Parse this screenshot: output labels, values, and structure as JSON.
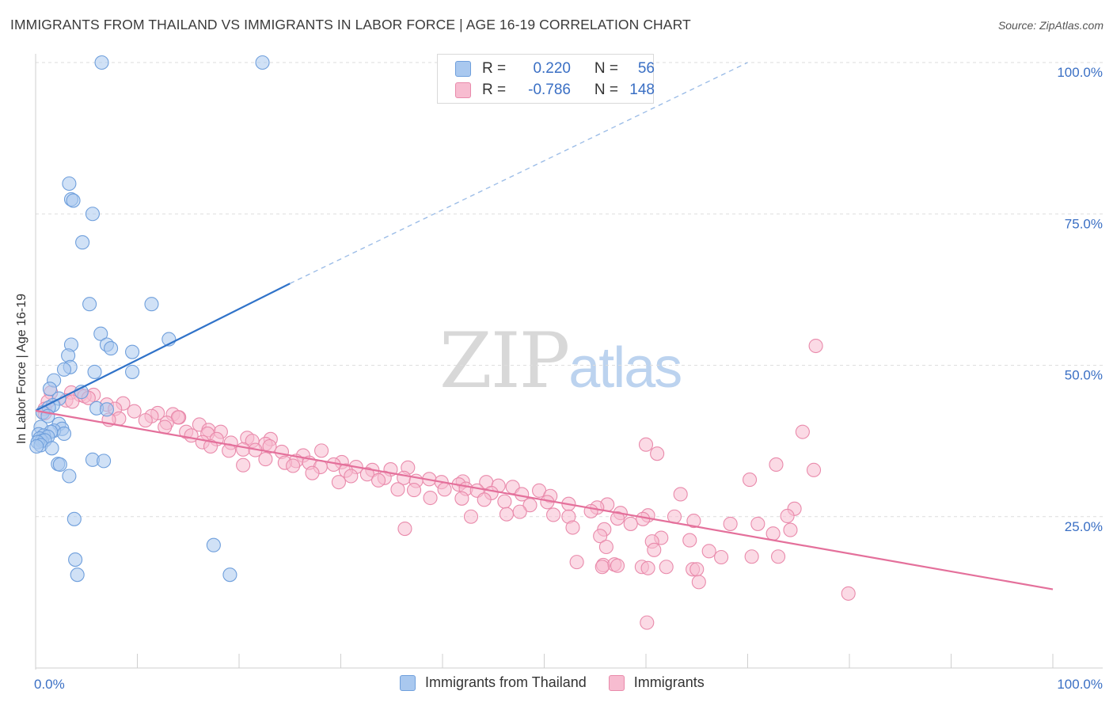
{
  "header": {
    "title": "IMMIGRANTS FROM THAILAND VS IMMIGRANTS IN LABOR FORCE | AGE 16-19 CORRELATION CHART",
    "source": "Source: ZipAtlas.com"
  },
  "watermark": {
    "zip": "ZIP",
    "atlas": "atlas"
  },
  "legend_top": {
    "rows": [
      {
        "r_label": "R =",
        "r_value": "0.220",
        "n_label": "N =",
        "n_value": "56",
        "color": "#a9c8ef",
        "border": "#6f9fdc"
      },
      {
        "r_label": "R =",
        "r_value": "-0.786",
        "n_label": "N =",
        "n_value": "148",
        "color": "#f7bcd0",
        "border": "#e98aab"
      }
    ]
  },
  "legend_bottom": {
    "items": [
      {
        "label": "Immigrants from Thailand",
        "color": "#a9c8ef",
        "border": "#6f9fdc"
      },
      {
        "label": "Immigrants",
        "color": "#f7bcd0",
        "border": "#e98aab"
      }
    ]
  },
  "chart_data": {
    "type": "scatter",
    "title": "IMMIGRANTS FROM THAILAND VS IMMIGRANTS IN LABOR FORCE | AGE 16-19 CORRELATION CHART",
    "xlabel": "",
    "ylabel": "In Labor Force | Age 16-19",
    "xlim": [
      0,
      100
    ],
    "ylim": [
      0,
      100
    ],
    "x_tick_labels": [
      "0.0%",
      "100.0%"
    ],
    "y_tick_labels": [
      "25.0%",
      "50.0%",
      "75.0%",
      "100.0%"
    ],
    "y_ticks": [
      25,
      50,
      75,
      100
    ],
    "grid": true,
    "legend_position": "top-center",
    "colors": {
      "blue_fill": "#a9c8ef",
      "blue_stroke": "#6f9fdc",
      "blue_line": "#3073c9",
      "pink_fill": "#f7bcd0",
      "pink_stroke": "#e98aab",
      "pink_line": "#e4709b",
      "tick_label": "#3a6fc4"
    },
    "series": [
      {
        "name": "Immigrants from Thailand",
        "r": 0.22,
        "n": 56,
        "trend": {
          "x": [
            0,
            25
          ],
          "y": [
            42.5,
            63.5
          ],
          "extend_x": [
            25,
            70
          ],
          "extend_y": [
            63.5,
            100.0
          ]
        },
        "points": [
          [
            6.5,
            100
          ],
          [
            22.3,
            100
          ],
          [
            3.3,
            80
          ],
          [
            3.5,
            77.4
          ],
          [
            3.7,
            77.2
          ],
          [
            5.6,
            75
          ],
          [
            4.6,
            70.3
          ],
          [
            5.3,
            60.1
          ],
          [
            11.4,
            60.1
          ],
          [
            6.4,
            55.2
          ],
          [
            7.0,
            53.4
          ],
          [
            7.4,
            52.8
          ],
          [
            9.5,
            52.2
          ],
          [
            13.1,
            54.3
          ],
          [
            3.5,
            53.4
          ],
          [
            3.2,
            51.6
          ],
          [
            3.4,
            49.7
          ],
          [
            2.8,
            49.3
          ],
          [
            5.8,
            48.9
          ],
          [
            9.5,
            48.9
          ],
          [
            1.8,
            47.5
          ],
          [
            1.4,
            46.1
          ],
          [
            4.5,
            45.6
          ],
          [
            2.3,
            44.5
          ],
          [
            1.7,
            43.4
          ],
          [
            1.3,
            43.0
          ],
          [
            6.0,
            42.9
          ],
          [
            7.0,
            42.7
          ],
          [
            0.7,
            42.2
          ],
          [
            1.2,
            41.6
          ],
          [
            2.3,
            40.3
          ],
          [
            0.5,
            39.8
          ],
          [
            2.6,
            39.5
          ],
          [
            1.8,
            39.2
          ],
          [
            1.5,
            39.0
          ],
          [
            0.3,
            38.6
          ],
          [
            0.8,
            38.4
          ],
          [
            1.2,
            38.2
          ],
          [
            2.8,
            38.7
          ],
          [
            0.4,
            37.9
          ],
          [
            0.6,
            37.5
          ],
          [
            0.9,
            37.6
          ],
          [
            0.2,
            37.3
          ],
          [
            0.5,
            36.8
          ],
          [
            0.1,
            36.6
          ],
          [
            1.6,
            36.3
          ],
          [
            5.6,
            34.4
          ],
          [
            6.7,
            34.2
          ],
          [
            2.2,
            33.7
          ],
          [
            2.4,
            33.6
          ],
          [
            3.3,
            31.7
          ],
          [
            3.8,
            24.6
          ],
          [
            17.5,
            20.3
          ],
          [
            3.9,
            17.9
          ],
          [
            4.1,
            15.4
          ],
          [
            19.1,
            15.4
          ]
        ]
      },
      {
        "name": "Immigrants",
        "r": -0.786,
        "n": 148,
        "trend": {
          "x": [
            0,
            100
          ],
          "y": [
            42.5,
            13.0
          ]
        },
        "points": [
          [
            1.5,
            45.5
          ],
          [
            3.5,
            45.5
          ],
          [
            4.4,
            45.1
          ],
          [
            5.7,
            45.1
          ],
          [
            4.8,
            44.9
          ],
          [
            5.2,
            44.6
          ],
          [
            3.0,
            44.2
          ],
          [
            1.2,
            44.0
          ],
          [
            3.6,
            44.0
          ],
          [
            8.6,
            43.7
          ],
          [
            7.0,
            43.5
          ],
          [
            0.9,
            42.8
          ],
          [
            7.8,
            42.8
          ],
          [
            9.7,
            42.4
          ],
          [
            12.0,
            42.1
          ],
          [
            13.5,
            41.9
          ],
          [
            14.1,
            41.4
          ],
          [
            11.4,
            41.6
          ],
          [
            8.2,
            41.2
          ],
          [
            10.8,
            40.9
          ],
          [
            0.9,
            42.1
          ],
          [
            14.0,
            41.4
          ],
          [
            12.9,
            40.5
          ],
          [
            16.1,
            40.2
          ],
          [
            12.7,
            39.8
          ],
          [
            17.0,
            39.3
          ],
          [
            14.8,
            39.0
          ],
          [
            16.9,
            38.7
          ],
          [
            15.3,
            38.4
          ],
          [
            18.2,
            39.0
          ],
          [
            20.8,
            38.0
          ],
          [
            17.8,
            37.8
          ],
          [
            21.3,
            37.5
          ],
          [
            16.4,
            37.3
          ],
          [
            23.1,
            37.8
          ],
          [
            19.2,
            37.2
          ],
          [
            22.6,
            37.0
          ],
          [
            17.2,
            36.6
          ],
          [
            23.0,
            36.6
          ],
          [
            20.4,
            36.1
          ],
          [
            21.6,
            36.0
          ],
          [
            19.0,
            35.9
          ],
          [
            24.2,
            35.7
          ],
          [
            28.1,
            35.9
          ],
          [
            26.3,
            35.1
          ],
          [
            22.6,
            34.5
          ],
          [
            25.6,
            34.2
          ],
          [
            26.9,
            33.9
          ],
          [
            30.1,
            34.0
          ],
          [
            24.5,
            33.9
          ],
          [
            29.3,
            33.6
          ],
          [
            25.3,
            33.4
          ],
          [
            28.0,
            33.2
          ],
          [
            20.4,
            33.5
          ],
          [
            31.5,
            33.2
          ],
          [
            36.6,
            33.1
          ],
          [
            33.1,
            32.7
          ],
          [
            30.5,
            32.6
          ],
          [
            34.9,
            32.8
          ],
          [
            27.2,
            32.2
          ],
          [
            32.6,
            32.0
          ],
          [
            31.0,
            31.7
          ],
          [
            34.3,
            31.4
          ],
          [
            36.2,
            31.4
          ],
          [
            38.7,
            31.2
          ],
          [
            33.7,
            31.0
          ],
          [
            37.4,
            30.9
          ],
          [
            39.9,
            30.7
          ],
          [
            42.0,
            30.8
          ],
          [
            44.3,
            30.7
          ],
          [
            29.8,
            30.7
          ],
          [
            41.6,
            30.3
          ],
          [
            45.5,
            30.1
          ],
          [
            46.9,
            29.9
          ],
          [
            42.3,
            29.6
          ],
          [
            35.6,
            29.5
          ],
          [
            40.2,
            29.5
          ],
          [
            37.2,
            29.4
          ],
          [
            43.4,
            29.3
          ],
          [
            49.5,
            29.3
          ],
          [
            44.8,
            28.9
          ],
          [
            47.8,
            28.7
          ],
          [
            50.6,
            28.4
          ],
          [
            38.8,
            28.1
          ],
          [
            41.9,
            28.0
          ],
          [
            44.1,
            27.8
          ],
          [
            46.1,
            27.5
          ],
          [
            50.3,
            27.4
          ],
          [
            52.4,
            27.1
          ],
          [
            48.6,
            26.9
          ],
          [
            56.2,
            27.0
          ],
          [
            55.2,
            26.5
          ],
          [
            54.6,
            25.9
          ],
          [
            57.5,
            25.6
          ],
          [
            47.6,
            25.8
          ],
          [
            60.2,
            25.2
          ],
          [
            50.9,
            25.3
          ],
          [
            52.4,
            25.0
          ],
          [
            46.3,
            25.4
          ],
          [
            57.2,
            24.7
          ],
          [
            42.8,
            25.0
          ],
          [
            59.7,
            24.6
          ],
          [
            64.7,
            24.3
          ],
          [
            58.5,
            23.8
          ],
          [
            52.8,
            23.2
          ],
          [
            55.9,
            22.9
          ],
          [
            36.3,
            23.0
          ],
          [
            55.5,
            21.8
          ],
          [
            61.5,
            21.5
          ],
          [
            60.6,
            20.9
          ],
          [
            64.3,
            21.1
          ],
          [
            56.1,
            20.0
          ],
          [
            60.8,
            19.5
          ],
          [
            66.2,
            19.3
          ],
          [
            67.4,
            18.3
          ],
          [
            70.4,
            18.4
          ],
          [
            73.0,
            18.4
          ],
          [
            53.2,
            17.5
          ],
          [
            55.8,
            17.0
          ],
          [
            56.9,
            17.1
          ],
          [
            57.2,
            16.9
          ],
          [
            59.6,
            16.7
          ],
          [
            55.7,
            16.7
          ],
          [
            60.2,
            16.5
          ],
          [
            62.0,
            16.7
          ],
          [
            64.6,
            16.3
          ],
          [
            65.0,
            16.3
          ],
          [
            65.2,
            14.2
          ],
          [
            79.9,
            12.3
          ],
          [
            60.1,
            7.5
          ],
          [
            60.0,
            36.9
          ],
          [
            61.1,
            35.4
          ],
          [
            70.2,
            31.1
          ],
          [
            72.8,
            33.6
          ],
          [
            75.4,
            39.0
          ],
          [
            76.5,
            32.7
          ],
          [
            74.6,
            26.3
          ],
          [
            73.9,
            25.1
          ],
          [
            72.5,
            22.2
          ],
          [
            74.2,
            22.8
          ],
          [
            63.4,
            28.7
          ],
          [
            62.8,
            25.0
          ],
          [
            68.3,
            23.8
          ],
          [
            71.0,
            23.8
          ],
          [
            76.7,
            53.2
          ],
          [
            7.2,
            41.0
          ]
        ]
      }
    ]
  }
}
